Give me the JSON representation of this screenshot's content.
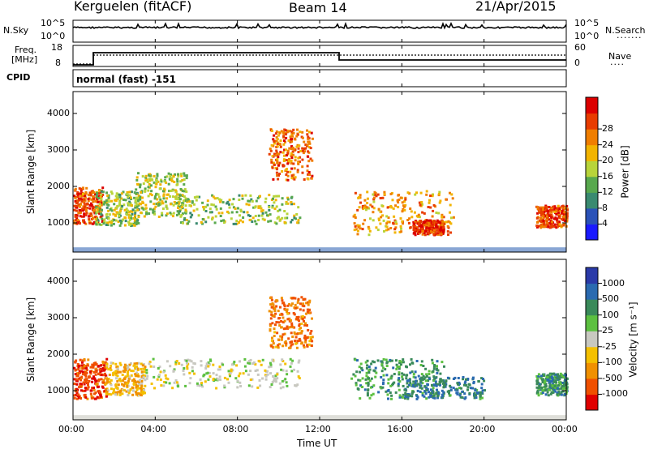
{
  "header": {
    "radar": "Kerguelen (fitACF)",
    "beam": "Beam 14",
    "date": "21/Apr/2015"
  },
  "nsky_panel": {
    "left_label": "N.Sky",
    "right_label": "N.Search",
    "left_ticks": [
      "10^5",
      "10^0"
    ],
    "right_ticks": [
      "10^5",
      "10^0"
    ]
  },
  "freq_panel": {
    "left_label_line1": "Freq.",
    "left_label_line2": "[MHz]",
    "right_label": "Nave",
    "left_ticks": [
      "18",
      "8"
    ],
    "right_ticks": [
      "60",
      "0"
    ]
  },
  "cpid": {
    "label": "CPID",
    "text": "normal (fast) -151"
  },
  "chart_data": [
    {
      "type": "heatmap",
      "name": "power",
      "ylabel": "Slant Range [km]",
      "xlabel": "",
      "yticks": [
        "1000",
        "2000",
        "3000",
        "4000"
      ],
      "ylim": [
        200,
        4600
      ],
      "colorbar_label": "Power [dB]",
      "colorbar_ticks": [
        "4",
        "8",
        "12",
        "16",
        "20",
        "24",
        "28"
      ],
      "colorbar_colors": [
        "#1a1aff",
        "#2a52b8",
        "#3a8a70",
        "#58a84e",
        "#b8d43a",
        "#f2b400",
        "#f07e00",
        "#e83c00",
        "#dc0000"
      ],
      "patches_km_time": [
        {
          "t0": 0.0,
          "t1": 1.4,
          "r0": 1000,
          "r1": 2000,
          "level": 0.85
        },
        {
          "t0": 1.0,
          "t1": 3.2,
          "r0": 950,
          "r1": 1900,
          "level": 0.45
        },
        {
          "t0": 3.0,
          "t1": 5.5,
          "r0": 1200,
          "r1": 2400,
          "level": 0.5
        },
        {
          "t0": 5.0,
          "t1": 11.0,
          "r0": 1000,
          "r1": 1800,
          "level": 0.45
        },
        {
          "t0": 9.5,
          "t1": 11.6,
          "r0": 2200,
          "r1": 3600,
          "level": 0.8
        },
        {
          "t0": 13.5,
          "t1": 18.5,
          "r0": 700,
          "r1": 1900,
          "level": 0.7
        },
        {
          "t0": 16.5,
          "t1": 18.0,
          "r0": 700,
          "r1": 1100,
          "level": 0.9
        },
        {
          "t0": 22.5,
          "t1": 24.0,
          "r0": 900,
          "r1": 1500,
          "level": 0.85
        }
      ]
    },
    {
      "type": "heatmap",
      "name": "velocity",
      "ylabel": "Slant Range [km]",
      "xlabel": "Time UT",
      "yticks": [
        "1000",
        "2000",
        "3000",
        "4000"
      ],
      "ylim": [
        200,
        4600
      ],
      "colorbar_label": "Velocity [m s⁻¹]",
      "colorbar_ticks": [
        "1000",
        "500",
        "100",
        "25",
        "-25",
        "-100",
        "-500",
        "-1000"
      ],
      "colorbar_colors": [
        "#2a3aa8",
        "#2a6ab0",
        "#3a8a5a",
        "#5cc040",
        "#c8c8c0",
        "#f4c000",
        "#f09000",
        "#f05000",
        "#e00000"
      ],
      "patches_km_time": [
        {
          "t0": 0.0,
          "t1": 1.6,
          "r0": 800,
          "r1": 1900,
          "level": -0.8
        },
        {
          "t0": 1.5,
          "t1": 3.5,
          "r0": 900,
          "r1": 1800,
          "level": -0.3
        },
        {
          "t0": 3.5,
          "t1": 11.0,
          "r0": 1100,
          "r1": 1900,
          "level": 0.0
        },
        {
          "t0": 9.5,
          "t1": 11.6,
          "r0": 2200,
          "r1": 3600,
          "level": -0.6
        },
        {
          "t0": 13.5,
          "t1": 18.0,
          "r0": 800,
          "r1": 1900,
          "level": 0.45
        },
        {
          "t0": 16.0,
          "t1": 20.0,
          "r0": 800,
          "r1": 1400,
          "level": 0.6
        },
        {
          "t0": 22.5,
          "t1": 24.0,
          "r0": 900,
          "r1": 1500,
          "level": 0.5
        }
      ]
    }
  ],
  "time_axis": {
    "ticks": [
      "00:00",
      "04:00",
      "08:00",
      "12:00",
      "16:00",
      "20:00",
      "00:00"
    ],
    "label": "Time UT"
  }
}
